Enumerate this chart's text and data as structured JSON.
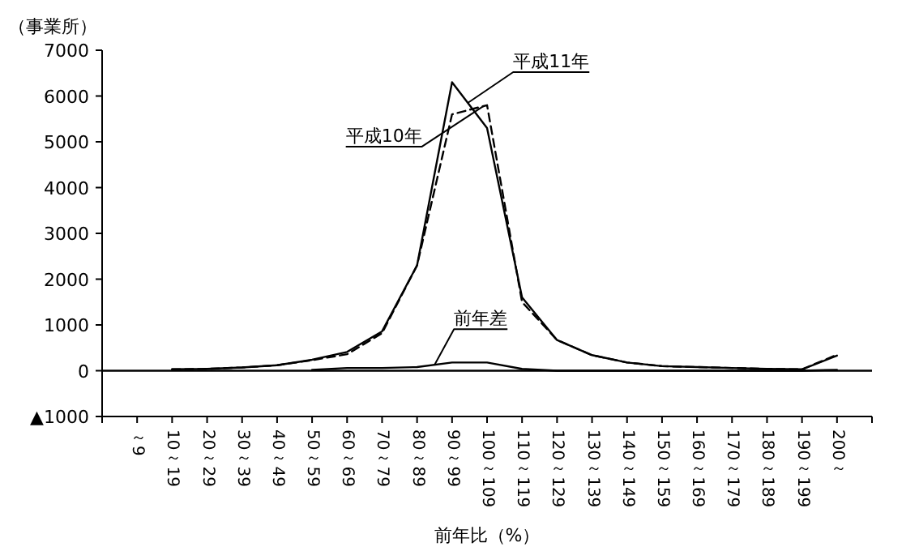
{
  "chart_data": {
    "type": "line",
    "xlabel": "前年比（%）",
    "ylabel": "（事業所）",
    "categories": [
      "～9",
      "10～19",
      "20～29",
      "30～39",
      "40～49",
      "50～59",
      "60～69",
      "70～79",
      "80～89",
      "90～99",
      "100～109",
      "110～119",
      "120～129",
      "130～139",
      "140～149",
      "150～159",
      "160～169",
      "170～179",
      "180～189",
      "190～199",
      "200～"
    ],
    "series": [
      {
        "name": "平成11年",
        "color": "#000000",
        "line_style": "solid",
        "values": [
          null,
          30,
          40,
          70,
          120,
          240,
          410,
          860,
          2300,
          6300,
          5300,
          1600,
          670,
          340,
          180,
          100,
          80,
          60,
          40,
          30,
          330
        ]
      },
      {
        "name": "平成10年",
        "color": "#000000",
        "line_style": "dashed",
        "values": [
          null,
          30,
          40,
          70,
          120,
          230,
          360,
          820,
          2300,
          5600,
          5800,
          1500,
          670,
          340,
          180,
          100,
          80,
          60,
          40,
          30,
          350
        ]
      },
      {
        "name": "前年差",
        "color": "#000000",
        "line_style": "solid",
        "values": [
          null,
          null,
          null,
          null,
          null,
          20,
          60,
          60,
          80,
          180,
          180,
          40,
          0,
          0,
          0,
          0,
          0,
          0,
          0,
          0,
          20
        ]
      }
    ],
    "ylim": [
      -1000,
      7000
    ],
    "yticks": [
      {
        "value": -1000,
        "label": "▲1000"
      },
      0,
      1000,
      2000,
      3000,
      4000,
      5000,
      6000,
      7000
    ],
    "ref_lines": [
      {
        "axis": "y",
        "value": 0,
        "color": "#000000",
        "line_style": "solid"
      }
    ],
    "grid": false,
    "marker": "none"
  }
}
